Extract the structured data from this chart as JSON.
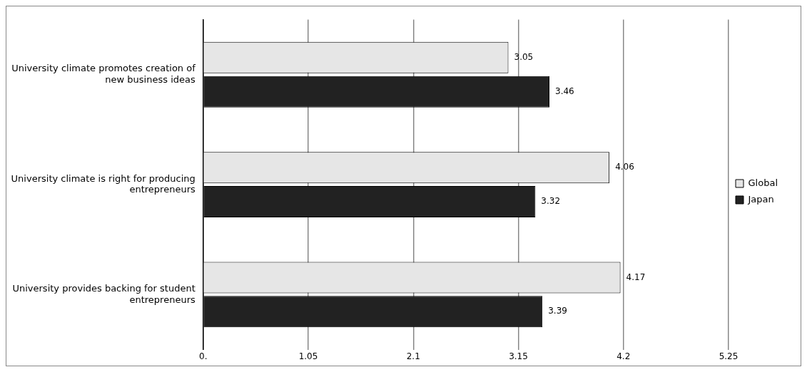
{
  "chart_data": {
    "type": "bar",
    "orientation": "horizontal",
    "categories": [
      "University climate promotes creation of new business ideas",
      "University climate is right for producing entrepreneurs",
      "University provides backing for student entrepreneurs"
    ],
    "series": [
      {
        "name": "Global",
        "color": "#e6e6e6",
        "values": [
          3.05,
          4.06,
          4.17
        ]
      },
      {
        "name": "Japan",
        "color": "#222222",
        "values": [
          3.46,
          3.32,
          3.39
        ]
      }
    ],
    "xlim": [
      0,
      5.25
    ],
    "xticks": [
      {
        "value": 0,
        "label": "0."
      },
      1.05,
      2.1,
      3.15,
      4.2,
      5.25
    ],
    "grid": "x",
    "legend": "right",
    "data_labels": true
  }
}
